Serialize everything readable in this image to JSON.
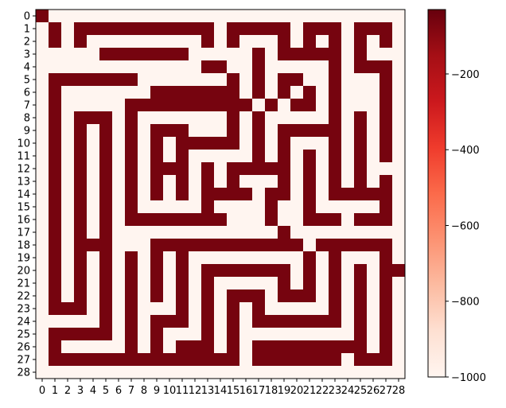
{
  "chart_data": {
    "type": "heatmap",
    "title": "",
    "xlabel": "",
    "ylabel": "",
    "colormap": "Reds_r",
    "vmin": -1000,
    "vmax": -30,
    "grid": false,
    "x_ticks": [
      "0",
      "1",
      "2",
      "3",
      "4",
      "5",
      "6",
      "7",
      "8",
      "9",
      "10",
      "11",
      "12",
      "13",
      "14",
      "15",
      "16",
      "17",
      "18",
      "19",
      "20",
      "21",
      "22",
      "23",
      "24",
      "25",
      "26",
      "27",
      "28"
    ],
    "y_ticks": [
      "0",
      "1",
      "2",
      "3",
      "4",
      "5",
      "6",
      "7",
      "8",
      "9",
      "10",
      "11",
      "12",
      "13",
      "14",
      "15",
      "16",
      "17",
      "18",
      "19",
      "20",
      "21",
      "22",
      "23",
      "24",
      "25",
      "26",
      "27",
      "28"
    ],
    "colorbar": {
      "ticks": [
        -200,
        -400,
        -600,
        -800,
        -1000
      ],
      "tick_labels": [
        "−200",
        "−400",
        "−600",
        "−800",
        "−1000"
      ]
    },
    "background_value": -1000,
    "path_value_default": -60,
    "maze_rows": [
      "S............................",
      ".#.###########.#####.###.###.",
      ".#.#.........#.#...#.#.#.#.#.",
      ".....#######.....#.#####.#...",
      ".............##..#.....#.###.",
      ".#######.......#.#.##..#...#.",
      ".#.......#######.#.#.#.#...#.",
      ".#.....##########.#.##.#...#.",
      ".#.###.#.......#.#.....#.#.#.",
      ".#.#.#.#.###...#.#.#####.#.#.",
      ".#.#.#.#.#.#####.#.#...#.#.#.",
      ".#.#.#.#.#.#.....#.#.#.#.#.#.",
      ".#.#.#.#.###.#.#####.#.#.#...",
      ".#.#.#.#.#.#.#.#...#.#.#.#.#.",
      ".#.#.#.#.#.#.####.##.#.#####.",
      ".#.#.#.#.....#....#..#.....#.",
      ".#.#.#.########...#..###.###.",
      ".#.#.#.............#.........",
      ".#.###...############.######.",
      ".#.#.#.#.#.#.........#.#...#.",
      ".#.#.#.#.#.#.#######.#.#.#.#E",
      ".#.#.#.#.#.#.#.....#.#.#.#.#.",
      ".#.#.#.#.#.#.#.###.###.#.#.#.",
      ".###.#.#...#.#.#.#.....#.#.#.",
      ".....#.#.###.#.#.#######.#.#.",
      ".#####.#.#...#.#.........#.#.",
      ".#.....#.#.###.#.#########.#.",
      ".###############.#######.###.",
      "............................."
    ]
  }
}
